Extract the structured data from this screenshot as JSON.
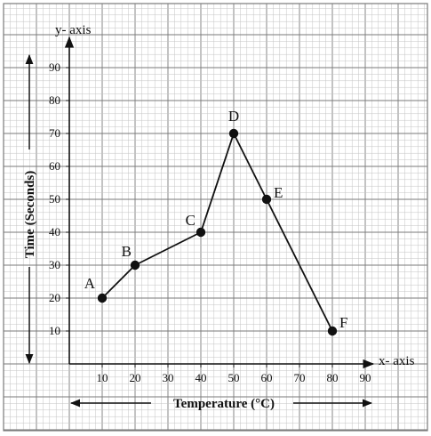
{
  "chart_data": {
    "type": "line",
    "title": "",
    "xlabel": "Temperature (°C)",
    "ylabel": "Time (Seconds)",
    "x_axis_name": "x- axis",
    "y_axis_name": "y- axis",
    "xlim": [
      0,
      90
    ],
    "ylim": [
      0,
      90
    ],
    "x_ticks": [
      10,
      20,
      30,
      40,
      50,
      60,
      70,
      80,
      90
    ],
    "y_ticks": [
      10,
      20,
      30,
      40,
      50,
      60,
      70,
      80,
      90
    ],
    "grid": true,
    "points": [
      {
        "label": "A",
        "x": 10,
        "y": 20
      },
      {
        "label": "B",
        "x": 20,
        "y": 30
      },
      {
        "label": "C",
        "x": 40,
        "y": 40
      },
      {
        "label": "D",
        "x": 50,
        "y": 70
      },
      {
        "label": "E",
        "x": 60,
        "y": 50
      },
      {
        "label": "F",
        "x": 80,
        "y": 10
      }
    ],
    "colors": {
      "grid_minor": "#c4c4c4",
      "grid_major": "#7a7a7a",
      "ink": "#111111"
    }
  }
}
